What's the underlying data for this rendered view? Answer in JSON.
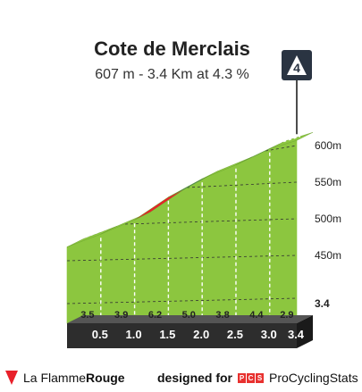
{
  "header": {
    "title": "Cote de Merclais",
    "subtitle": "607 m - 3.4 Km at 4.3 %"
  },
  "category_badge": {
    "label": "4"
  },
  "footer": {
    "left_brand_prefix": "La Flamme",
    "left_brand_bold": "Rouge",
    "designed_for": "designed for",
    "pcs_letters": [
      "P",
      "C",
      "S"
    ],
    "right_brand": "ProCyclingStats"
  },
  "colors": {
    "green": "#8cc63f",
    "green_light": "#a5d65a",
    "red": "#e8202a",
    "blue": "#1f5d8c",
    "base_dark": "#2d2d2d",
    "side_grey": "#a59c90",
    "badge_dark": "#2a3442"
  },
  "chart_data": {
    "type": "area",
    "distance_km": [
      0,
      0.5,
      1.0,
      1.5,
      2.0,
      2.5,
      3.0,
      3.4
    ],
    "altitude_m": [
      461.5,
      479,
      498.5,
      529.5,
      554.5,
      573.5,
      595.5,
      607
    ],
    "km_labels": [
      "0.5",
      "1.0",
      "1.5",
      "2.0",
      "2.5",
      "3.0",
      "3.4"
    ],
    "segment_gradients_pct": [
      "3.5",
      "3.9",
      "6.2",
      "5.0",
      "3.8",
      "4.4",
      "2.9"
    ],
    "segment_color_class": [
      "green",
      "green",
      "red",
      "blue",
      "green",
      "blue",
      "green"
    ],
    "y_ticks": [
      {
        "value": 450,
        "label": "450m"
      },
      {
        "value": 500,
        "label": "500m"
      },
      {
        "value": 550,
        "label": "550m"
      },
      {
        "value": 600,
        "label": "600m"
      }
    ],
    "ylim": [
      400,
      610
    ],
    "xlim": [
      0,
      3.4
    ]
  }
}
